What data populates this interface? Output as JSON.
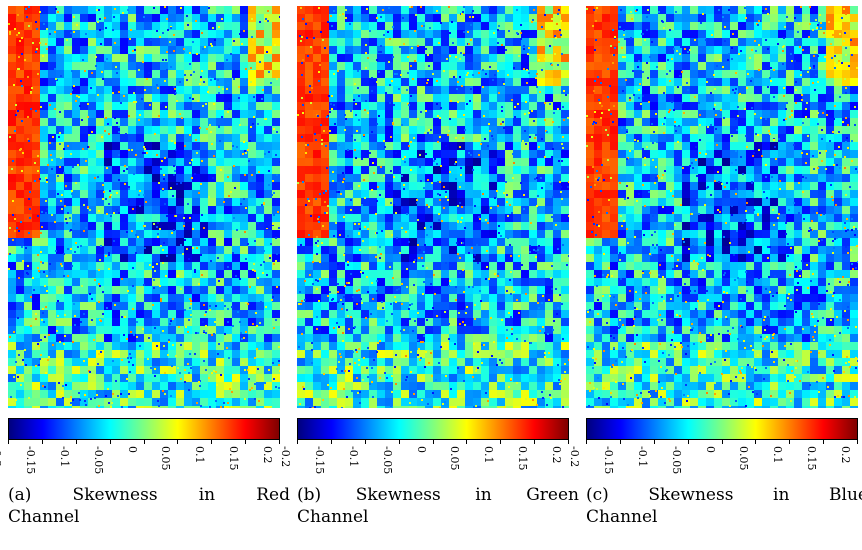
{
  "panels": [
    {
      "id": "a",
      "caption_line1": "(a)   Skewness   in   Red",
      "caption_line2": "Channel",
      "seed": 11
    },
    {
      "id": "b",
      "caption_line1": "(b)   Skewness   in   Green",
      "caption_line2": "Channel",
      "seed": 23
    },
    {
      "id": "c",
      "caption_line1": "(c)   Skewness   in   Blue",
      "caption_line2": "Channel",
      "seed": 37
    }
  ],
  "colorbar": {
    "colormap": "jet",
    "range": [
      -0.2,
      0.2
    ],
    "tick_labels": [
      "-0.2",
      "-0.15",
      "-0.1",
      "-0.05",
      "0",
      "0.05",
      "0.1",
      "0.15",
      "0.2"
    ],
    "tick_values": [
      -0.2,
      -0.15,
      -0.1,
      -0.05,
      0,
      0.05,
      0.1,
      0.15,
      0.2
    ]
  },
  "colors": {
    "jet_stops": [
      "#00007f",
      "#0000ff",
      "#007fff",
      "#00ffff",
      "#7fff7f",
      "#ffff00",
      "#ff7f00",
      "#ff0000",
      "#7f0000"
    ]
  }
}
